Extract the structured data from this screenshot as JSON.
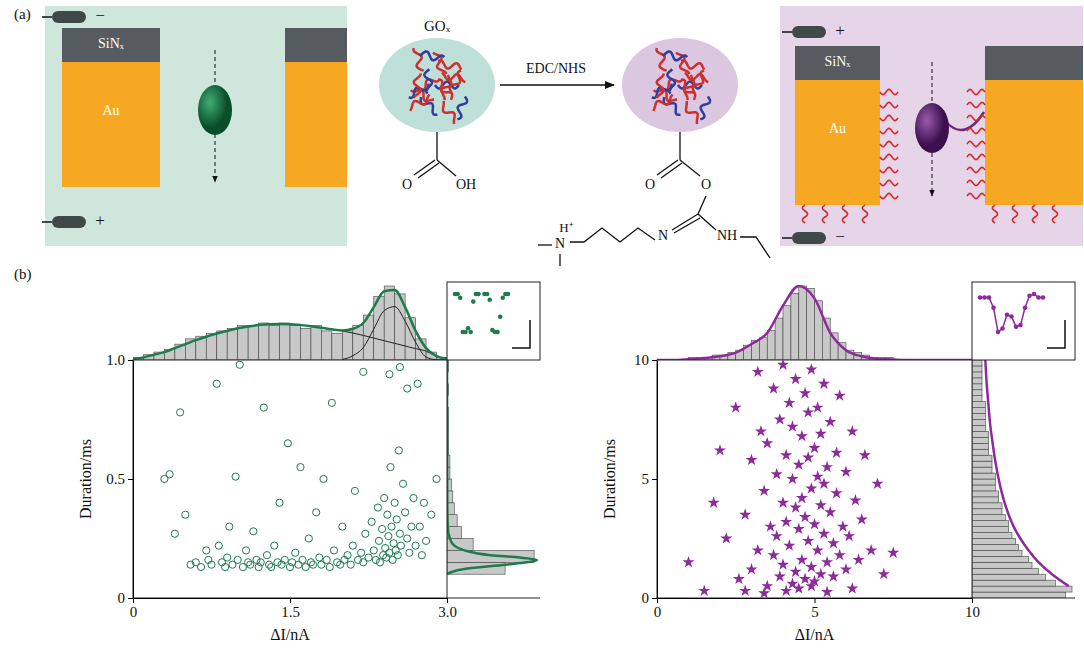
{
  "panel_a": {
    "label": "(a)",
    "left": {
      "electrode_top": "−",
      "electrode_bottom": "+",
      "nitride": "SiNₓ",
      "gold": "Au"
    },
    "protein": "GOₓ",
    "reagent": "EDC/NHS",
    "carboxyl": {
      "carbonyl_o": "O",
      "hydroxyl": "OH"
    },
    "ester": {
      "carbonyl_o": "O",
      "ester_o": "O",
      "proton": "H⁺",
      "amine": "N",
      "imine": "N",
      "amide": "NH"
    },
    "right": {
      "electrode_top": "+",
      "electrode_bottom": "−",
      "nitride": "SiNₓ",
      "gold": "Au"
    }
  },
  "panel_b": {
    "label": "(b)"
  },
  "chart_data": [
    {
      "type": "scatter",
      "x_label": "ΔI/nA",
      "y_label": "Duration/ms",
      "color": "#1e7b4e",
      "marker": "circle",
      "xlim": [
        0,
        3
      ],
      "xticks": [
        0,
        1.5,
        {
          "value": 3,
          "label": "3.0"
        }
      ],
      "ylim": [
        0,
        1
      ],
      "yticks": [
        0,
        0.5,
        {
          "value": 1,
          "label": "1.0"
        }
      ],
      "x": [
        0.35,
        0.3,
        0.4,
        0.45,
        0.5,
        0.55,
        0.6,
        0.65,
        0.7,
        0.72,
        0.75,
        0.8,
        0.82,
        0.85,
        0.88,
        0.9,
        0.92,
        0.95,
        0.98,
        1.0,
        1.02,
        1.05,
        1.08,
        1.1,
        1.12,
        1.15,
        1.18,
        1.2,
        1.22,
        1.25,
        1.28,
        1.3,
        1.32,
        1.35,
        1.38,
        1.4,
        1.42,
        1.45,
        1.48,
        1.5,
        1.52,
        1.55,
        1.58,
        1.6,
        1.62,
        1.65,
        1.68,
        1.7,
        1.72,
        1.75,
        1.78,
        1.8,
        1.82,
        1.85,
        1.88,
        1.9,
        1.92,
        1.95,
        1.98,
        2.0,
        2.02,
        2.05,
        2.08,
        2.1,
        2.12,
        2.15,
        2.18,
        2.2,
        2.22,
        2.25,
        2.28,
        2.3,
        2.32,
        2.34,
        2.35,
        2.36,
        2.38,
        2.39,
        2.4,
        2.41,
        2.42,
        2.43,
        2.44,
        2.45,
        2.46,
        2.47,
        2.48,
        2.49,
        2.5,
        2.51,
        2.52,
        2.53,
        2.54,
        2.55,
        2.56,
        2.58,
        2.6,
        2.62,
        2.64,
        2.66,
        2.68,
        2.7,
        2.72,
        2.74,
        2.76,
        2.78,
        2.8,
        2.85,
        2.9,
        2.45,
        2.55,
        2.62,
        2.2
      ],
      "y": [
        0.52,
        0.5,
        0.27,
        0.78,
        0.35,
        0.14,
        0.15,
        0.13,
        0.2,
        0.16,
        0.14,
        0.9,
        0.22,
        0.15,
        0.13,
        0.17,
        0.3,
        0.14,
        0.51,
        0.16,
        0.98,
        0.13,
        0.2,
        0.15,
        0.14,
        0.28,
        0.16,
        0.13,
        0.15,
        0.8,
        0.18,
        0.14,
        0.13,
        0.22,
        0.15,
        0.4,
        0.14,
        0.16,
        0.65,
        0.13,
        0.15,
        0.19,
        0.14,
        0.55,
        0.16,
        0.13,
        0.25,
        0.15,
        0.14,
        0.36,
        0.17,
        0.14,
        0.5,
        0.16,
        0.13,
        0.82,
        0.2,
        0.15,
        0.14,
        0.3,
        0.16,
        0.18,
        0.14,
        0.22,
        0.45,
        0.16,
        0.19,
        0.15,
        0.27,
        0.17,
        0.32,
        0.2,
        0.16,
        0.38,
        0.24,
        0.15,
        0.29,
        0.18,
        0.42,
        0.21,
        0.17,
        0.35,
        0.26,
        0.19,
        0.55,
        0.3,
        0.16,
        0.23,
        0.4,
        0.2,
        0.33,
        0.18,
        0.62,
        0.27,
        0.22,
        0.48,
        0.36,
        0.25,
        0.19,
        0.3,
        0.42,
        0.22,
        0.9,
        0.3,
        0.18,
        0.4,
        0.24,
        0.35,
        0.5,
        0.94,
        0.97,
        0.88,
        0.95
      ],
      "x_histogram": {
        "color": "#c8c8c8",
        "bins": [
          0,
          0.1,
          0.2,
          0.3,
          0.4,
          0.5,
          0.6,
          0.7,
          0.8,
          0.9,
          1,
          1.1,
          1.2,
          1.3,
          1.4,
          1.5,
          1.6,
          1.7,
          1.8,
          1.9,
          2,
          2.1,
          2.2,
          2.3,
          2.4,
          2.5,
          2.6,
          2.7,
          2.8,
          2.9,
          3
        ],
        "counts": [
          1,
          2,
          3,
          4,
          6,
          8,
          9,
          10,
          11,
          12,
          13,
          13,
          14,
          13,
          14,
          13,
          12,
          13,
          11,
          10,
          11,
          13,
          17,
          24,
          28,
          25,
          16,
          8,
          3,
          1
        ],
        "fit": {
          "color": "#1e7b4e",
          "x": [
            0,
            0.1,
            0.2,
            0.3,
            0.4,
            0.5,
            0.6,
            0.7,
            0.8,
            0.9,
            1,
            1.1,
            1.2,
            1.3,
            1.4,
            1.5,
            1.6,
            1.7,
            1.8,
            1.9,
            2,
            2.1,
            2.2,
            2.3,
            2.4,
            2.5,
            2.6,
            2.7,
            2.8,
            2.9,
            3
          ],
          "counts": [
            0.4,
            1,
            2,
            3,
            4.5,
            6,
            7.5,
            8.8,
            10,
            11,
            12,
            12.7,
            13.2,
            13.5,
            13.6,
            13.5,
            13.2,
            12.8,
            12.2,
            11.6,
            11.2,
            11.8,
            14,
            20,
            26,
            26.5,
            20,
            11,
            4.5,
            1.5,
            0.5
          ]
        },
        "components": [
          {
            "color": "#222222",
            "x": [
              0,
              0.1,
              0.2,
              0.3,
              0.4,
              0.5,
              0.6,
              0.7,
              0.8,
              0.9,
              1,
              1.1,
              1.2,
              1.3,
              1.4,
              1.5,
              1.6,
              1.7,
              1.8,
              1.9,
              2,
              2.1,
              2.2,
              2.3,
              2.4,
              2.5,
              2.6,
              2.7,
              2.8,
              2.9,
              3
            ],
            "counts": [
              0.4,
              1,
              2,
              3,
              4.5,
              6,
              7.5,
              8.8,
              10,
              11,
              12,
              12.7,
              13.2,
              13.5,
              13.6,
              13.5,
              13.2,
              12.8,
              12.2,
              11.6,
              11,
              10.2,
              9.3,
              8.3,
              7.3,
              6.3,
              5.3,
              4.3,
              3.4,
              1.4,
              0.5
            ]
          },
          {
            "color": "#222222",
            "x": [
              2,
              2.1,
              2.2,
              2.3,
              2.4,
              2.5,
              2.6,
              2.7,
              2.8,
              2.9,
              3
            ],
            "counts": [
              0.2,
              1.6,
              4.7,
              11.7,
              18.7,
              20.2,
              14.7,
              6.7,
              1.1,
              0.1,
              0
            ]
          }
        ]
      },
      "y_histogram": {
        "color": "#c8c8c8",
        "bins": [
          0,
          0.05,
          0.1,
          0.15,
          0.2,
          0.25,
          0.3,
          0.35,
          0.4,
          0.45,
          0.5,
          0.55,
          0.6,
          0.65,
          0.7,
          0.75,
          0.8,
          0.85,
          0.9,
          0.95,
          1
        ],
        "counts": [
          0,
          0,
          40,
          60,
          18,
          10,
          7,
          5,
          4,
          3,
          2,
          2,
          1,
          1,
          1,
          1,
          0,
          1,
          0,
          1
        ],
        "fit": {
          "color": "#1e7b4e",
          "y": [
            0.1,
            0.12,
            0.14,
            0.15,
            0.16,
            0.17,
            0.18,
            0.2,
            0.22,
            0.25,
            0.3,
            0.4,
            0.6,
            1.0
          ],
          "counts": [
            0,
            10,
            40,
            55,
            62,
            50,
            30,
            12,
            5,
            2,
            0.5,
            0.2,
            0.1,
            0.05
          ]
        }
      },
      "inset_traces": [
        [
          0,
          0,
          -0.1,
          -1,
          -1,
          -0.9,
          -1,
          -0.2,
          0,
          0
        ],
        [
          0,
          0,
          -0.15,
          -0.95,
          -1,
          -1,
          -0.6,
          -0.1,
          0,
          0
        ]
      ]
    },
    {
      "type": "scatter",
      "x_label": "ΔI/nA",
      "y_label": "Duration/ms",
      "color": "#8e2a9c",
      "marker": "star",
      "xlim": [
        0,
        10
      ],
      "xticks": [
        0,
        5,
        10
      ],
      "ylim": [
        0,
        10
      ],
      "yticks": [
        0,
        5,
        10
      ],
      "x": [
        1.0,
        1.5,
        1.8,
        2.0,
        2.2,
        2.5,
        2.6,
        2.8,
        3.0,
        3.0,
        3.2,
        3.2,
        3.3,
        3.4,
        3.5,
        3.5,
        3.6,
        3.7,
        3.7,
        3.8,
        3.8,
        3.9,
        3.9,
        4.0,
        4.0,
        4.0,
        4.1,
        4.1,
        4.2,
        4.2,
        4.3,
        4.3,
        4.3,
        4.4,
        4.4,
        4.4,
        4.5,
        4.5,
        4.5,
        4.6,
        4.6,
        4.6,
        4.7,
        4.7,
        4.7,
        4.8,
        4.8,
        4.8,
        4.9,
        4.9,
        4.9,
        5.0,
        5.0,
        5.0,
        5.1,
        5.1,
        5.1,
        5.2,
        5.2,
        5.2,
        5.3,
        5.3,
        5.3,
        5.4,
        5.4,
        5.5,
        5.5,
        5.6,
        5.6,
        5.7,
        5.7,
        5.8,
        5.8,
        5.9,
        6.0,
        6.0,
        6.1,
        6.2,
        6.3,
        6.4,
        6.5,
        6.6,
        6.8,
        7.0,
        7.2,
        7.5,
        2.8,
        3.4,
        4.1,
        5.4,
        6.2,
        4.9
      ],
      "y": [
        1.5,
        0.3,
        4.0,
        6.2,
        2.5,
        8.0,
        0.8,
        3.5,
        5.8,
        1.2,
        9.5,
        2.0,
        7.0,
        4.5,
        0.5,
        6.5,
        3.0,
        8.8,
        1.8,
        5.2,
        2.6,
        7.5,
        0.9,
        4.0,
        9.8,
        1.4,
        6.0,
        3.2,
        8.2,
        2.2,
        5.0,
        0.6,
        7.2,
        3.8,
        1.1,
        9.2,
        5.6,
        2.9,
        0.4,
        6.8,
        4.2,
        1.6,
        8.6,
        3.4,
        0.8,
        5.9,
        2.4,
        7.8,
        4.6,
        1.3,
        9.6,
        3.1,
        6.3,
        0.7,
        5.1,
        2.0,
        8.0,
        3.9,
        1.0,
        6.9,
        4.8,
        2.7,
        9.0,
        1.5,
        5.5,
        3.6,
        7.4,
        0.9,
        2.3,
        4.4,
        6.1,
        1.8,
        8.5,
        3.0,
        5.3,
        1.2,
        2.6,
        7.0,
        4.1,
        1.6,
        3.3,
        6.0,
        2.0,
        4.8,
        1.0,
        1.9,
        0.3,
        0.2,
        0.3,
        0.25,
        0.4,
        0.5
      ],
      "x_histogram": {
        "color": "#c8c8c8",
        "bins": [
          0,
          0.25,
          0.5,
          0.75,
          1,
          1.25,
          1.5,
          1.75,
          2,
          2.25,
          2.5,
          2.75,
          3,
          3.25,
          3.5,
          3.75,
          4,
          4.25,
          4.5,
          4.75,
          5,
          5.25,
          5.5,
          5.75,
          6,
          6.25,
          6.5,
          6.75,
          7,
          7.25,
          7.5,
          7.75,
          8,
          8.25,
          8.5,
          8.75,
          9,
          9.25,
          9.5,
          9.75,
          10
        ],
        "counts": [
          0,
          0,
          0,
          0,
          1,
          1,
          1,
          2,
          2,
          3,
          4,
          6,
          8,
          9,
          12,
          17,
          22,
          27,
          30,
          29,
          24,
          17,
          11,
          7,
          4,
          3,
          2,
          1,
          1,
          1,
          0,
          0,
          0,
          0,
          0,
          0,
          0,
          0,
          0,
          0
        ],
        "fit": {
          "color": "#8e2a9c",
          "x": [
            0,
            0.5,
            1,
            1.5,
            2,
            2.5,
            3,
            3.5,
            4,
            4.5,
            5,
            5.5,
            6,
            6.5,
            7,
            7.5,
            8,
            8.5,
            9,
            9.5,
            10
          ],
          "counts": [
            0,
            0,
            0.3,
            0.8,
            1.5,
            3,
            6.5,
            11,
            22,
            30,
            25,
            11,
            4,
            1.5,
            0.5,
            0.2,
            0,
            0,
            0,
            0,
            0
          ]
        }
      },
      "y_histogram": {
        "color": "#c8c8c8",
        "bins": [
          0,
          0.25,
          0.5,
          0.75,
          1,
          1.25,
          1.5,
          1.75,
          2,
          2.25,
          2.5,
          2.75,
          3,
          3.25,
          3.5,
          3.75,
          4,
          4.25,
          4.5,
          4.75,
          5,
          5.25,
          5.5,
          5.75,
          6,
          6.25,
          6.5,
          6.75,
          7,
          7.25,
          7.5,
          7.75,
          8,
          8.25,
          8.5,
          8.75,
          9,
          9.25,
          9.5,
          9.75,
          10
        ],
        "counts": [
          28,
          30,
          25,
          22,
          20,
          18,
          17,
          15,
          14,
          13,
          12,
          11,
          11,
          10,
          9,
          9,
          8,
          8,
          7,
          7,
          7,
          6,
          6,
          6,
          5,
          5,
          5,
          5,
          4,
          4,
          4,
          4,
          4,
          3,
          3,
          3,
          3,
          3,
          3,
          3
        ],
        "fit": {
          "color": "#8e2a9c",
          "y": [
            0.5,
            1,
            1.5,
            2,
            2.5,
            3,
            3.5,
            4,
            4.5,
            5,
            5.5,
            6,
            6.5,
            7,
            7.5,
            8,
            8.5,
            9,
            9.5,
            10
          ],
          "counts": [
            29,
            24,
            20,
            17,
            14.5,
            12.5,
            11,
            9.8,
            8.8,
            8,
            7.3,
            6.7,
            6.2,
            5.7,
            5.3,
            5,
            4.7,
            4.4,
            4.2,
            4.0
          ]
        }
      },
      "inset_traces": [
        [
          0,
          0,
          0,
          -0.3,
          -1,
          -0.9,
          -0.5,
          -0.55,
          -0.85,
          -0.8,
          -0.3,
          0.05,
          0.1,
          0,
          0
        ]
      ]
    }
  ]
}
